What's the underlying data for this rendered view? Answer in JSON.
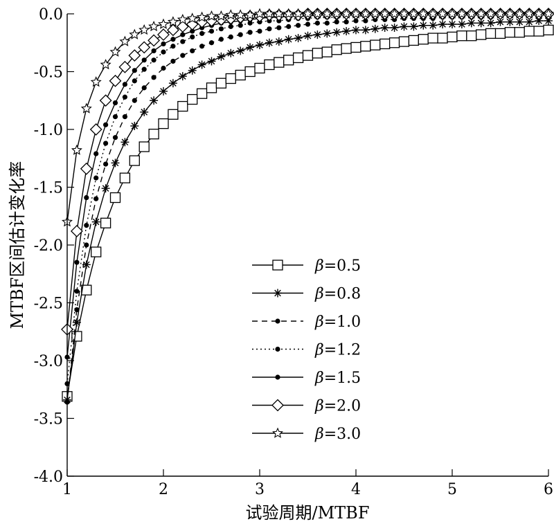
{
  "chart_data": {
    "type": "line",
    "title": "",
    "xlabel": "试验周期/MTBF",
    "ylabel": "MTBF区间估计变化率",
    "xlim": [
      1,
      6
    ],
    "ylim": [
      -4.0,
      0.0
    ],
    "xticks": [
      1,
      2,
      3,
      4,
      5,
      6
    ],
    "xtick_labels": [
      "1",
      "2",
      "3",
      "4",
      "5",
      "6"
    ],
    "yticks": [
      0.0,
      -0.5,
      -1.0,
      -1.5,
      -2.0,
      -2.5,
      -3.0,
      -3.5,
      -4.0
    ],
    "ytick_labels": [
      "0.0",
      "-0.5",
      "-1.0",
      "-1.5",
      "-2.0",
      "-2.5",
      "-3.0",
      "-3.5",
      "-4.0"
    ],
    "grid": false,
    "legend_position": "lower-center",
    "x": [
      1.0,
      1.1,
      1.2,
      1.3,
      1.4,
      1.5,
      1.6,
      1.7,
      1.8,
      1.9,
      2.0,
      2.1,
      2.2,
      2.3,
      2.4,
      2.5,
      2.6,
      2.7,
      2.8,
      2.9,
      3.0,
      3.1,
      3.2,
      3.3,
      3.4,
      3.5,
      3.6,
      3.7,
      3.8,
      3.9,
      4.0,
      4.1,
      4.2,
      4.3,
      4.4,
      4.5,
      4.6,
      4.7,
      4.8,
      4.9,
      5.0,
      5.1,
      5.2,
      5.3,
      5.4,
      5.5,
      5.6,
      5.7,
      5.8,
      5.9,
      6.0
    ],
    "series": [
      {
        "name": "β=0.5",
        "label_symbol": "β",
        "label_value": "=0.5",
        "line_style": "solid",
        "marker": "square",
        "values": [
          -3.31,
          -2.79,
          -2.39,
          -2.06,
          -1.81,
          -1.59,
          -1.42,
          -1.27,
          -1.15,
          -1.04,
          -0.95,
          -0.87,
          -0.8,
          -0.74,
          -0.69,
          -0.64,
          -0.6,
          -0.56,
          -0.53,
          -0.5,
          -0.47,
          -0.44,
          -0.42,
          -0.4,
          -0.38,
          -0.36,
          -0.34,
          -0.33,
          -0.31,
          -0.3,
          -0.29,
          -0.28,
          -0.27,
          -0.26,
          -0.25,
          -0.24,
          -0.23,
          -0.22,
          -0.21,
          -0.21,
          -0.2,
          -0.19,
          -0.19,
          -0.18,
          -0.17,
          -0.17,
          -0.16,
          -0.16,
          -0.15,
          -0.15,
          -0.14
        ]
      },
      {
        "name": "β=0.8",
        "label_symbol": "β",
        "label_value": "=0.8",
        "line_style": "solid",
        "marker": "asterisk",
        "values": [
          -3.34,
          -2.67,
          -2.17,
          -1.8,
          -1.51,
          -1.29,
          -1.11,
          -0.97,
          -0.85,
          -0.75,
          -0.67,
          -0.6,
          -0.54,
          -0.49,
          -0.44,
          -0.41,
          -0.37,
          -0.34,
          -0.32,
          -0.29,
          -0.27,
          -0.25,
          -0.24,
          -0.22,
          -0.21,
          -0.19,
          -0.18,
          -0.17,
          -0.16,
          -0.15,
          -0.14,
          -0.14,
          -0.13,
          -0.12,
          -0.12,
          -0.11,
          -0.11,
          -0.1,
          -0.1,
          -0.09,
          -0.09,
          -0.09,
          -0.08,
          -0.08,
          -0.08,
          -0.07,
          -0.07,
          -0.07,
          -0.07,
          -0.06,
          -0.06
        ]
      },
      {
        "name": "β=1.0",
        "label_symbol": "β",
        "label_value": "=1.0",
        "line_style": "dashed",
        "marker": "dot",
        "values": [
          -3.36,
          -2.56,
          -2.0,
          -1.6,
          -1.3,
          -1.07,
          -0.89,
          -0.75,
          -0.64,
          -0.55,
          -0.47,
          -0.41,
          -0.36,
          -0.32,
          -0.28,
          -0.25,
          -0.22,
          -0.2,
          -0.18,
          -0.16,
          -0.15,
          -0.13,
          -0.12,
          -0.11,
          -0.1,
          -0.09,
          -0.08,
          -0.08,
          -0.07,
          -0.07,
          -0.06,
          -0.06,
          -0.05,
          -0.05,
          -0.05,
          -0.04,
          -0.04,
          -0.04,
          -0.04,
          -0.03,
          -0.03,
          -0.03,
          -0.03,
          -0.03,
          -0.03,
          -0.02,
          -0.02,
          -0.02,
          -0.02,
          -0.02,
          -0.02
        ]
      },
      {
        "name": "β=1.2",
        "label_symbol": "β",
        "label_value": "=1.2",
        "line_style": "dotted",
        "marker": "dot",
        "values": [
          -3.2,
          -2.4,
          -1.83,
          -1.42,
          -1.12,
          -0.89,
          -0.72,
          -0.58,
          -0.48,
          -0.4,
          -0.33,
          -0.28,
          -0.24,
          -0.2,
          -0.17,
          -0.15,
          -0.13,
          -0.11,
          -0.1,
          -0.08,
          -0.07,
          -0.06,
          -0.06,
          -0.05,
          -0.04,
          -0.04,
          -0.03,
          -0.03,
          -0.03,
          -0.02,
          -0.02,
          -0.02,
          -0.02,
          -0.02,
          -0.01,
          -0.01,
          -0.01,
          -0.01,
          -0.01,
          -0.01,
          -0.01,
          -0.01,
          -0.01,
          0.0,
          0.0,
          0.0,
          0.0,
          0.0,
          0.0,
          0.0,
          0.0
        ]
      },
      {
        "name": "β=1.5",
        "label_symbol": "β",
        "label_value": "=1.5",
        "line_style": "solid",
        "marker": "dot",
        "values": [
          -2.97,
          -2.15,
          -1.59,
          -1.21,
          -0.96,
          -0.77,
          -0.61,
          -0.49,
          -0.4,
          -0.32,
          -0.26,
          -0.22,
          -0.18,
          -0.15,
          -0.12,
          -0.1,
          -0.08,
          -0.07,
          -0.06,
          -0.05,
          -0.04,
          -0.03,
          -0.03,
          -0.02,
          -0.02,
          -0.02,
          -0.01,
          -0.01,
          -0.01,
          -0.01,
          -0.01,
          0.0,
          0.0,
          0.0,
          0.0,
          0.0,
          0.0,
          0.0,
          0.0,
          0.0,
          0.0,
          0.0,
          0.0,
          0.0,
          0.0,
          0.0,
          0.0,
          0.0,
          0.0,
          0.0,
          0.0
        ]
      },
      {
        "name": "β=2.0",
        "label_symbol": "β",
        "label_value": "=2.0",
        "line_style": "solid",
        "marker": "diamond",
        "values": [
          -2.73,
          -1.88,
          -1.34,
          -1.0,
          -0.75,
          -0.58,
          -0.46,
          -0.36,
          -0.29,
          -0.23,
          -0.18,
          -0.14,
          -0.11,
          -0.09,
          -0.07,
          -0.06,
          -0.05,
          -0.04,
          -0.03,
          -0.02,
          -0.02,
          -0.01,
          -0.01,
          -0.01,
          -0.01,
          0.0,
          0.0,
          0.0,
          0.0,
          0.0,
          0.0,
          0.0,
          0.0,
          0.0,
          0.0,
          0.0,
          0.0,
          0.0,
          0.0,
          0.0,
          0.0,
          0.0,
          0.0,
          0.0,
          0.0,
          0.0,
          0.0,
          0.0,
          0.0,
          0.0,
          0.0
        ]
      },
      {
        "name": "β=3.0",
        "label_symbol": "β",
        "label_value": "=3.0",
        "line_style": "solid",
        "marker": "star",
        "values": [
          -1.8,
          -1.18,
          -0.82,
          -0.59,
          -0.44,
          -0.33,
          -0.24,
          -0.18,
          -0.14,
          -0.11,
          -0.09,
          -0.07,
          -0.05,
          -0.04,
          -0.03,
          -0.02,
          -0.02,
          -0.01,
          -0.01,
          -0.01,
          0.0,
          0.0,
          0.0,
          0.0,
          0.0,
          0.0,
          0.0,
          0.0,
          0.0,
          0.0,
          0.0,
          0.0,
          0.0,
          0.0,
          0.0,
          0.0,
          0.0,
          0.0,
          0.0,
          0.0,
          0.0,
          0.0,
          0.0,
          0.0,
          0.0,
          0.0,
          0.0,
          0.0,
          0.0,
          0.0,
          0.0
        ]
      }
    ]
  }
}
